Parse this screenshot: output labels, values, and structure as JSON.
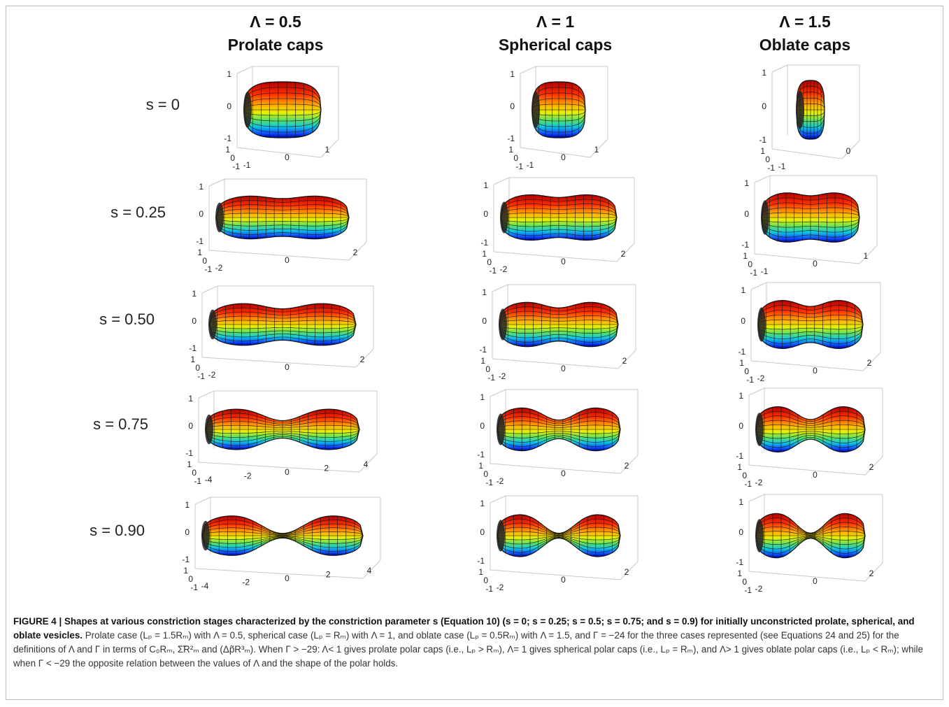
{
  "headers": [
    {
      "param": "Λ = 0.5",
      "label": "Prolate caps"
    },
    {
      "param": "Λ = 1",
      "label": "Spherical caps"
    },
    {
      "param": "Λ = 1.5",
      "label": "Oblate caps"
    }
  ],
  "rows": [
    {
      "label": "s = 0",
      "panels": [
        {
          "zticks": [
            1,
            0,
            -1
          ],
          "yticks": [
            1,
            0,
            -1
          ],
          "xticks": [
            -1,
            0,
            1
          ]
        },
        {
          "zticks": [
            1,
            0,
            -1
          ],
          "yticks": [
            1,
            0,
            -1
          ],
          "xticks": [
            -1,
            0,
            1
          ]
        },
        {
          "zticks": [
            1,
            0,
            -1
          ],
          "yticks": [
            1,
            0,
            -1
          ],
          "xticks": [
            -1,
            0
          ]
        }
      ]
    },
    {
      "label": "s = 0.25",
      "panels": [
        {
          "zticks": [
            1,
            0,
            -1
          ],
          "yticks": [
            1,
            0,
            -1
          ],
          "xticks": [
            -2,
            0,
            2
          ]
        },
        {
          "zticks": [
            1,
            0,
            -1
          ],
          "yticks": [
            1,
            0,
            -1
          ],
          "xticks": [
            -2,
            0,
            2
          ]
        },
        {
          "zticks": [
            1,
            0,
            -1
          ],
          "yticks": [
            1,
            0,
            -1
          ],
          "xticks": [
            -1,
            0,
            1
          ]
        }
      ]
    },
    {
      "label": "s = 0.50",
      "panels": [
        {
          "zticks": [
            1,
            0,
            -1
          ],
          "yticks": [
            1,
            0,
            -1
          ],
          "xticks": [
            -2,
            0,
            2
          ]
        },
        {
          "zticks": [
            1,
            0,
            -1
          ],
          "yticks": [
            1,
            0,
            -1
          ],
          "xticks": [
            -2,
            0,
            2
          ]
        },
        {
          "zticks": [
            1,
            0,
            -1
          ],
          "yticks": [
            1,
            0,
            -1
          ],
          "xticks": [
            -2,
            0,
            2
          ]
        }
      ]
    },
    {
      "label": "s = 0.75",
      "panels": [
        {
          "zticks": [
            1,
            0,
            -1
          ],
          "yticks": [
            1,
            0,
            -1
          ],
          "xticks": [
            -4,
            -2,
            0,
            2,
            4
          ]
        },
        {
          "zticks": [
            1,
            0,
            -1
          ],
          "yticks": [
            1,
            0,
            -1
          ],
          "xticks": [
            -2,
            0,
            2
          ]
        },
        {
          "zticks": [
            1,
            0,
            -1
          ],
          "yticks": [
            1,
            0,
            -1
          ],
          "xticks": [
            -2,
            0,
            2
          ]
        }
      ]
    },
    {
      "label": "s = 0.90",
      "panels": [
        {
          "zticks": [
            1,
            0,
            -1
          ],
          "yticks": [
            1,
            0,
            -1
          ],
          "xticks": [
            -4,
            -2,
            0,
            2,
            4
          ]
        },
        {
          "zticks": [
            1,
            0,
            -1
          ],
          "yticks": [
            1,
            0,
            -1
          ],
          "xticks": [
            -2,
            0,
            2
          ]
        },
        {
          "zticks": [
            1,
            0,
            -1
          ],
          "yticks": [
            1,
            0,
            -1
          ],
          "xticks": [
            -2,
            0,
            2
          ]
        }
      ]
    }
  ],
  "caption": {
    "bold": "FIGURE 4 | Shapes at various constriction stages characterized by the constriction parameter s (Equation 10) (s = 0; s = 0.25; s = 0.5; s = 0.75; and s = 0.9) for initially unconstricted prolate, spherical, and oblate vesicles.",
    "text": "Prolate case (Lₚ = 1.5Rₘ) with Λ = 0.5, spherical case (Lₚ = Rₘ) with Λ = 1, and oblate case (Lₚ = 0.5Rₘ) with Λ = 1.5, and Γ = −24 for the three cases represented (see Equations 24 and 25) for the definitions of Λ and Γ in terms of C₀Rₘ, Σ̃R²ₘ and (Δp̃R³ₘ). When Γ > −29: Λ< 1 gives prolate polar caps (i.e., Lₚ > Rₘ), Λ= 1 gives spherical polar caps (i.e., Lₚ = Rₘ), and Λ> 1 gives oblate polar caps (i.e., Lₚ < Rₘ); while when Γ < −29 the opposite relation between the values of Λ and the shape of the polar holds."
  }
}
